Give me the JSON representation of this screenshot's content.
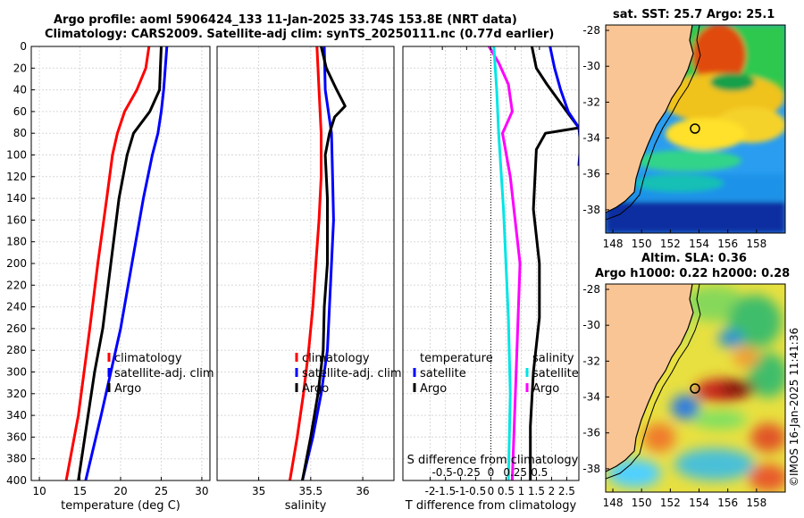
{
  "header": {
    "line1": "Argo profile: aoml 5906424_133 11-Jan-2025 33.74S 153.8E (NRT data)",
    "line2": "Climatology: CARS2009. Satellite-adj clim: synTS_20250111.nc (0.77d earlier)"
  },
  "credit": "©IMOS 16-Jan-2025 11:41:36",
  "colors": {
    "climatology": "#ff0000",
    "satellite": "#0000ff",
    "argo": "#000000",
    "t_diff": "#000000",
    "s_diff": "#ff00ff",
    "sat_t": "#0000ff",
    "sat_s": "#00e5e5",
    "land": "#f9c595"
  },
  "chart_data": [
    {
      "type": "line",
      "id": "temperature",
      "xlabel": "temperature (deg C)",
      "ylabel": "",
      "xlim": [
        9,
        31
      ],
      "ylim": [
        400,
        0
      ],
      "xticks": [
        10,
        15,
        20,
        25,
        30
      ],
      "yticks": [
        0,
        20,
        40,
        60,
        80,
        100,
        120,
        140,
        160,
        180,
        200,
        220,
        240,
        260,
        280,
        300,
        320,
        340,
        360,
        380,
        400
      ],
      "legend": [
        "climatology",
        "satellite-adj. clim",
        "Argo"
      ],
      "series": [
        {
          "name": "climatology",
          "depth": [
            0,
            20,
            40,
            60,
            80,
            100,
            140,
            200,
            260,
            300,
            340,
            400
          ],
          "values": [
            23.5,
            23.1,
            22.0,
            20.5,
            19.6,
            19.0,
            18.3,
            17.2,
            16.2,
            15.5,
            14.8,
            13.3
          ]
        },
        {
          "name": "satellite-adj. clim",
          "depth": [
            0,
            20,
            40,
            60,
            80,
            100,
            140,
            200,
            260,
            300,
            340,
            400
          ],
          "values": [
            25.7,
            25.5,
            25.3,
            25.0,
            24.6,
            23.9,
            22.8,
            21.4,
            20.0,
            18.8,
            17.6,
            15.7
          ]
        },
        {
          "name": "Argo",
          "depth": [
            0,
            20,
            40,
            60,
            80,
            100,
            140,
            200,
            260,
            300,
            340,
            400
          ],
          "values": [
            25.0,
            24.9,
            24.8,
            23.6,
            21.6,
            20.8,
            19.8,
            18.8,
            17.8,
            16.8,
            16.0,
            14.8
          ]
        }
      ]
    },
    {
      "type": "line",
      "id": "salinity",
      "xlabel": "salinity",
      "xlim": [
        34.6,
        36.3
      ],
      "ylim": [
        400,
        0
      ],
      "xticks": [
        35,
        35.5,
        36
      ],
      "legend": [
        "climatology",
        "satellite-adj. clim",
        "Argo"
      ],
      "series": [
        {
          "name": "climatology",
          "depth": [
            0,
            40,
            80,
            120,
            160,
            200,
            240,
            280,
            320,
            360,
            400
          ],
          "values": [
            35.56,
            35.58,
            35.6,
            35.6,
            35.58,
            35.55,
            35.52,
            35.48,
            35.43,
            35.37,
            35.3
          ]
        },
        {
          "name": "satellite-adj. clim",
          "depth": [
            0,
            40,
            80,
            120,
            160,
            200,
            240,
            280,
            320,
            360,
            400
          ],
          "values": [
            35.63,
            35.64,
            35.7,
            35.71,
            35.72,
            35.7,
            35.68,
            35.66,
            35.6,
            35.52,
            35.42
          ]
        },
        {
          "name": "Argo",
          "depth": [
            0,
            20,
            40,
            55,
            65,
            80,
            100,
            140,
            200,
            240,
            280,
            320,
            360,
            400
          ],
          "values": [
            35.6,
            35.65,
            35.75,
            35.83,
            35.73,
            35.68,
            35.64,
            35.66,
            35.66,
            35.63,
            35.62,
            35.57,
            35.5,
            35.42
          ]
        }
      ]
    },
    {
      "type": "line",
      "id": "differences",
      "xlabel": "T difference from climatology",
      "xlabel_top": "S difference from climatology",
      "xlim": [
        -2.9,
        2.9
      ],
      "ylim": [
        400,
        0
      ],
      "xticks": [
        -2,
        -1.5,
        -1,
        -0.5,
        0,
        0.5,
        1,
        1.5,
        2,
        2.5
      ],
      "top_xticks": [
        -0.5,
        -0.25,
        0,
        0.25,
        0.5
      ],
      "legend_left_title": "temperature",
      "legend_right_title": "salinity",
      "legend": [
        "satellite",
        "Argo",
        "satellite",
        "Argo"
      ],
      "series": [
        {
          "name": "Argo T",
          "depth": [
            0,
            20,
            35,
            60,
            75,
            80,
            95,
            150,
            200,
            250,
            300,
            350,
            400
          ],
          "values": [
            1.35,
            1.5,
            1.85,
            2.5,
            2.9,
            1.8,
            1.5,
            1.4,
            1.6,
            1.6,
            1.4,
            1.3,
            1.3
          ]
        },
        {
          "name": "satellite T",
          "depth": [
            0,
            20,
            40,
            60,
            75,
            90,
            110
          ],
          "values": [
            1.95,
            2.1,
            2.3,
            2.55,
            2.9,
            2.95,
            2.9
          ]
        },
        {
          "name": "Argo S",
          "depth": [
            0,
            15,
            35,
            60,
            80,
            120,
            200,
            300,
            400
          ],
          "values": [
            -0.02,
            0.08,
            0.18,
            0.22,
            0.12,
            0.2,
            0.3,
            0.26,
            0.22
          ]
        },
        {
          "name": "satellite S",
          "depth": [
            0,
            40,
            80,
            150,
            250,
            320,
            400
          ],
          "values": [
            0.03,
            0.06,
            0.08,
            0.13,
            0.18,
            0.2,
            0.18
          ]
        }
      ]
    },
    {
      "type": "heatmap",
      "id": "sst_map",
      "title": "sat. SST: 25.7 Argo: 25.1",
      "xlim": [
        147.5,
        160
      ],
      "ylim": [
        -39.3,
        -27.7
      ],
      "xticks": [
        148,
        150,
        152,
        154,
        156,
        158
      ],
      "yticks": [
        -28,
        -30,
        -32,
        -34,
        -36,
        -38
      ],
      "float_lon": 153.8,
      "float_lat": -33.74
    },
    {
      "type": "heatmap",
      "id": "sla_map",
      "title": "Altim. SLA: 0.36",
      "subtitle": "Argo h1000: 0.22 h2000: 0.28",
      "xlim": [
        147.5,
        160
      ],
      "ylim": [
        -39.3,
        -27.7
      ],
      "xticks": [
        148,
        150,
        152,
        154,
        156,
        158
      ],
      "yticks": [
        -28,
        -30,
        -32,
        -34,
        -36,
        -38
      ],
      "float_lon": 153.8,
      "float_lat": -33.74
    }
  ]
}
